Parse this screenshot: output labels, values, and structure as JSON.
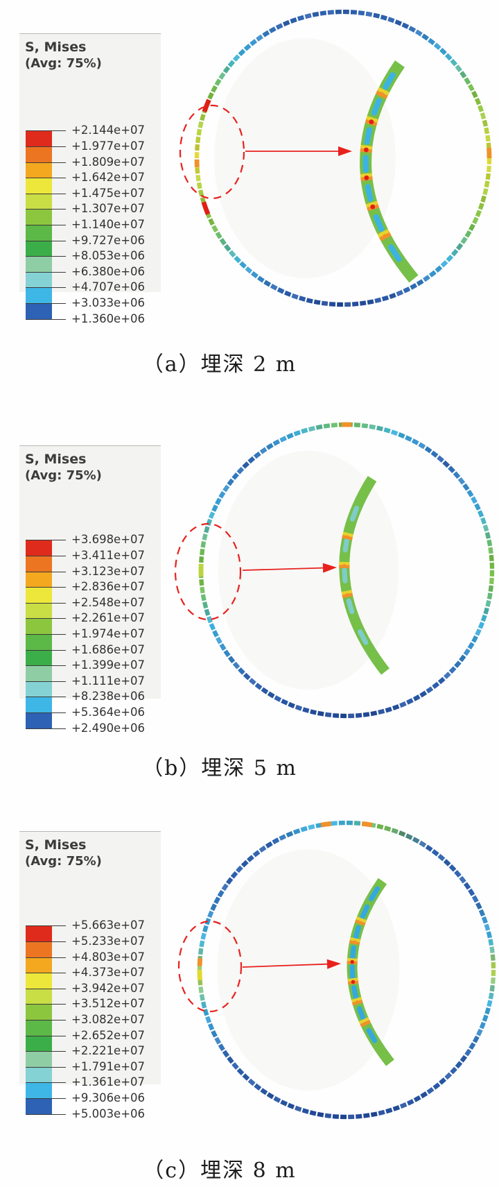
{
  "panels": [
    {
      "label": "a",
      "caption": "（a）埋深 2 m",
      "legend_title": "S, Mises",
      "legend_subtitle": "(Avg: 75%)",
      "legend_values": [
        "+2.144e+07",
        "+1.977e+07",
        "+1.809e+07",
        "+1.642e+07",
        "+1.475e+07",
        "+1.307e+07",
        "+1.140e+07",
        "+9.727e+06",
        "+8.053e+06",
        "+6.380e+06",
        "+4.707e+06",
        "+3.033e+06",
        "+1.360e+06"
      ]
    },
    {
      "label": "b",
      "caption": "（b）埋深 5 m",
      "legend_title": "S, Mises",
      "legend_subtitle": "(Avg: 75%)",
      "legend_values": [
        "+3.698e+07",
        "+3.411e+07",
        "+3.123e+07",
        "+2.836e+07",
        "+2.548e+07",
        "+2.261e+07",
        "+1.974e+07",
        "+1.686e+07",
        "+1.399e+07",
        "+1.111e+07",
        "+8.238e+06",
        "+5.364e+06",
        "+2.490e+06"
      ]
    },
    {
      "label": "c",
      "caption": "（c）埋深 8 m",
      "legend_title": "S, Mises",
      "legend_subtitle": "(Avg: 75%)",
      "legend_values": [
        "+5.663e+07",
        "+5.233e+07",
        "+4.803e+07",
        "+4.373e+07",
        "+3.942e+07",
        "+3.512e+07",
        "+3.082e+07",
        "+2.652e+07",
        "+2.221e+07",
        "+1.791e+07",
        "+1.361e+07",
        "+9.306e+06",
        "+5.003e+06"
      ]
    }
  ],
  "legend_band_colors": [
    "#df2b1c",
    "#ec7522",
    "#f3a81f",
    "#ede73b",
    "#c9dd45",
    "#8cc63f",
    "#5cb847",
    "#3cae49",
    "#8fcda4",
    "#85d2d4",
    "#3fb7e6",
    "#2d62b4"
  ],
  "colors": {
    "annotation_red": "#e8211d",
    "hotspot_red": "#e01f16",
    "hotspot_orange": "#f0912a",
    "hotspot_yellow": "#e8d22f",
    "mesh_green": "#76bf49",
    "mesh_cyan": "#3db3e3",
    "mesh_blue": "#2e62b1",
    "mesh_darkblue": "#1f4697",
    "legend_bg": "#f3f3f1"
  }
}
